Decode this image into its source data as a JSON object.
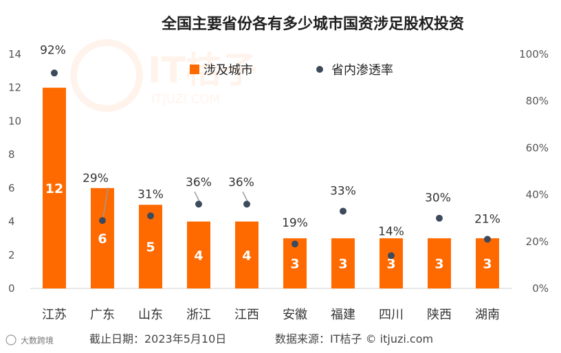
{
  "chart_data": {
    "type": "bar",
    "title": "全国主要省份各有多少城市国资涉足股权投资",
    "categories": [
      "江苏",
      "广东",
      "山东",
      "浙江",
      "江西",
      "安徽",
      "福建",
      "四川",
      "陕西",
      "湖南"
    ],
    "series": [
      {
        "name": "涉及城市",
        "axis": "left",
        "values": [
          12,
          6,
          5,
          4,
          4,
          3,
          3,
          3,
          3,
          3
        ]
      },
      {
        "name": "省内渗透率",
        "axis": "right",
        "type": "scatter",
        "values": [
          92,
          29,
          31,
          36,
          36,
          19,
          33,
          14,
          30,
          21
        ],
        "labels": [
          "92%",
          "29%",
          "31%",
          "36%",
          "36%",
          "19%",
          "33%",
          "14%",
          "30%",
          "21%"
        ]
      }
    ],
    "ylim_left": [
      0,
      14
    ],
    "yticks_left": [
      "0",
      "2",
      "4",
      "6",
      "8",
      "10",
      "12",
      "14"
    ],
    "ylim_right": [
      0,
      100
    ],
    "yticks_right": [
      "0%",
      "20%",
      "40%",
      "60%",
      "80%",
      "100%"
    ],
    "legend_position": "top-center",
    "grid": false,
    "colors": {
      "bar": "#FF6A00",
      "dot": "#3D4A5C",
      "leader": "#9A9A9A"
    }
  },
  "footer": {
    "date": "截止日期：2023年5月10日",
    "source": "数据来源：IT桔子 © itjuzi.com"
  },
  "watermark": {
    "brand_text": "IT桔子",
    "site_text": "ITJUZI.COM",
    "corner_text": "大数跨境"
  }
}
